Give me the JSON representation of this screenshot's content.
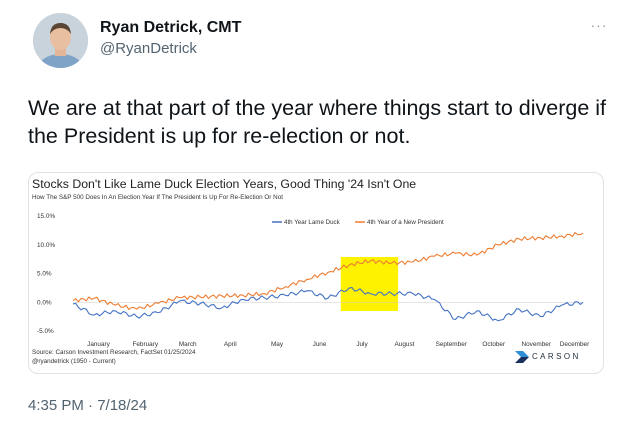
{
  "author": {
    "name": "Ryan Detrick, CMT",
    "handle": "@RyanDetrick"
  },
  "more_button": "···",
  "tweet": {
    "text": "We are at that part of the year where things start to diverge if the President is up for re-election or not.",
    "timestamp": "4:35 PM · 7/18/24"
  },
  "chart_data": {
    "type": "line",
    "title": "Stocks Don't Like Lame Duck Election Years, Good Thing '24 Isn't One",
    "subtitle": "How The S&P 500 Does In An Election Year If The President Is Up For Re-Election Or Not",
    "categories": [
      "January",
      "February",
      "March",
      "April",
      "May",
      "June",
      "July",
      "August",
      "September",
      "October",
      "November",
      "December"
    ],
    "x": [
      0,
      0.5,
      1,
      1.5,
      2,
      2.5,
      3,
      3.5,
      4,
      4.5,
      5,
      5.5,
      6,
      6.5,
      7,
      7.5,
      8,
      8.5,
      9,
      9.5,
      10,
      10.5,
      11,
      11.5,
      12
    ],
    "y_ticks": [
      "15.0%",
      "10.0%",
      "5.0%",
      "0.0%",
      "-5.0%"
    ],
    "ylim": [
      -5,
      15
    ],
    "grid": false,
    "legend_position": "top-right",
    "series": [
      {
        "name": "4th Year Lame Duck",
        "color": "#4472c4",
        "values": [
          -0.3,
          -2.2,
          -1.5,
          -2.5,
          -1.8,
          0.2,
          -0.2,
          -1.0,
          0.5,
          0.8,
          1.2,
          2.0,
          0.7,
          2.5,
          1.5,
          1.5,
          1.5,
          0.5,
          -3.0,
          -1.5,
          -3.2,
          -1.2,
          -2.5,
          -0.5,
          0.0
        ]
      },
      {
        "name": "4th Year of a New President",
        "color": "#ed7d31",
        "values": [
          0.3,
          0.7,
          -0.5,
          -1.2,
          -0.2,
          0.8,
          0.9,
          1.1,
          1.2,
          1.5,
          2.7,
          4.0,
          5.2,
          6.5,
          7.2,
          6.8,
          7.0,
          8.0,
          8.5,
          8.2,
          10.0,
          11.0,
          11.2,
          11.5,
          12.0
        ]
      }
    ],
    "highlight_color": "#fff200",
    "source_line1": "Source: Carson Investment Research, FactSet 01/25/2024",
    "source_line2": "@ryandetrick      (1950 - Current)",
    "logo_text": "CARSON"
  }
}
